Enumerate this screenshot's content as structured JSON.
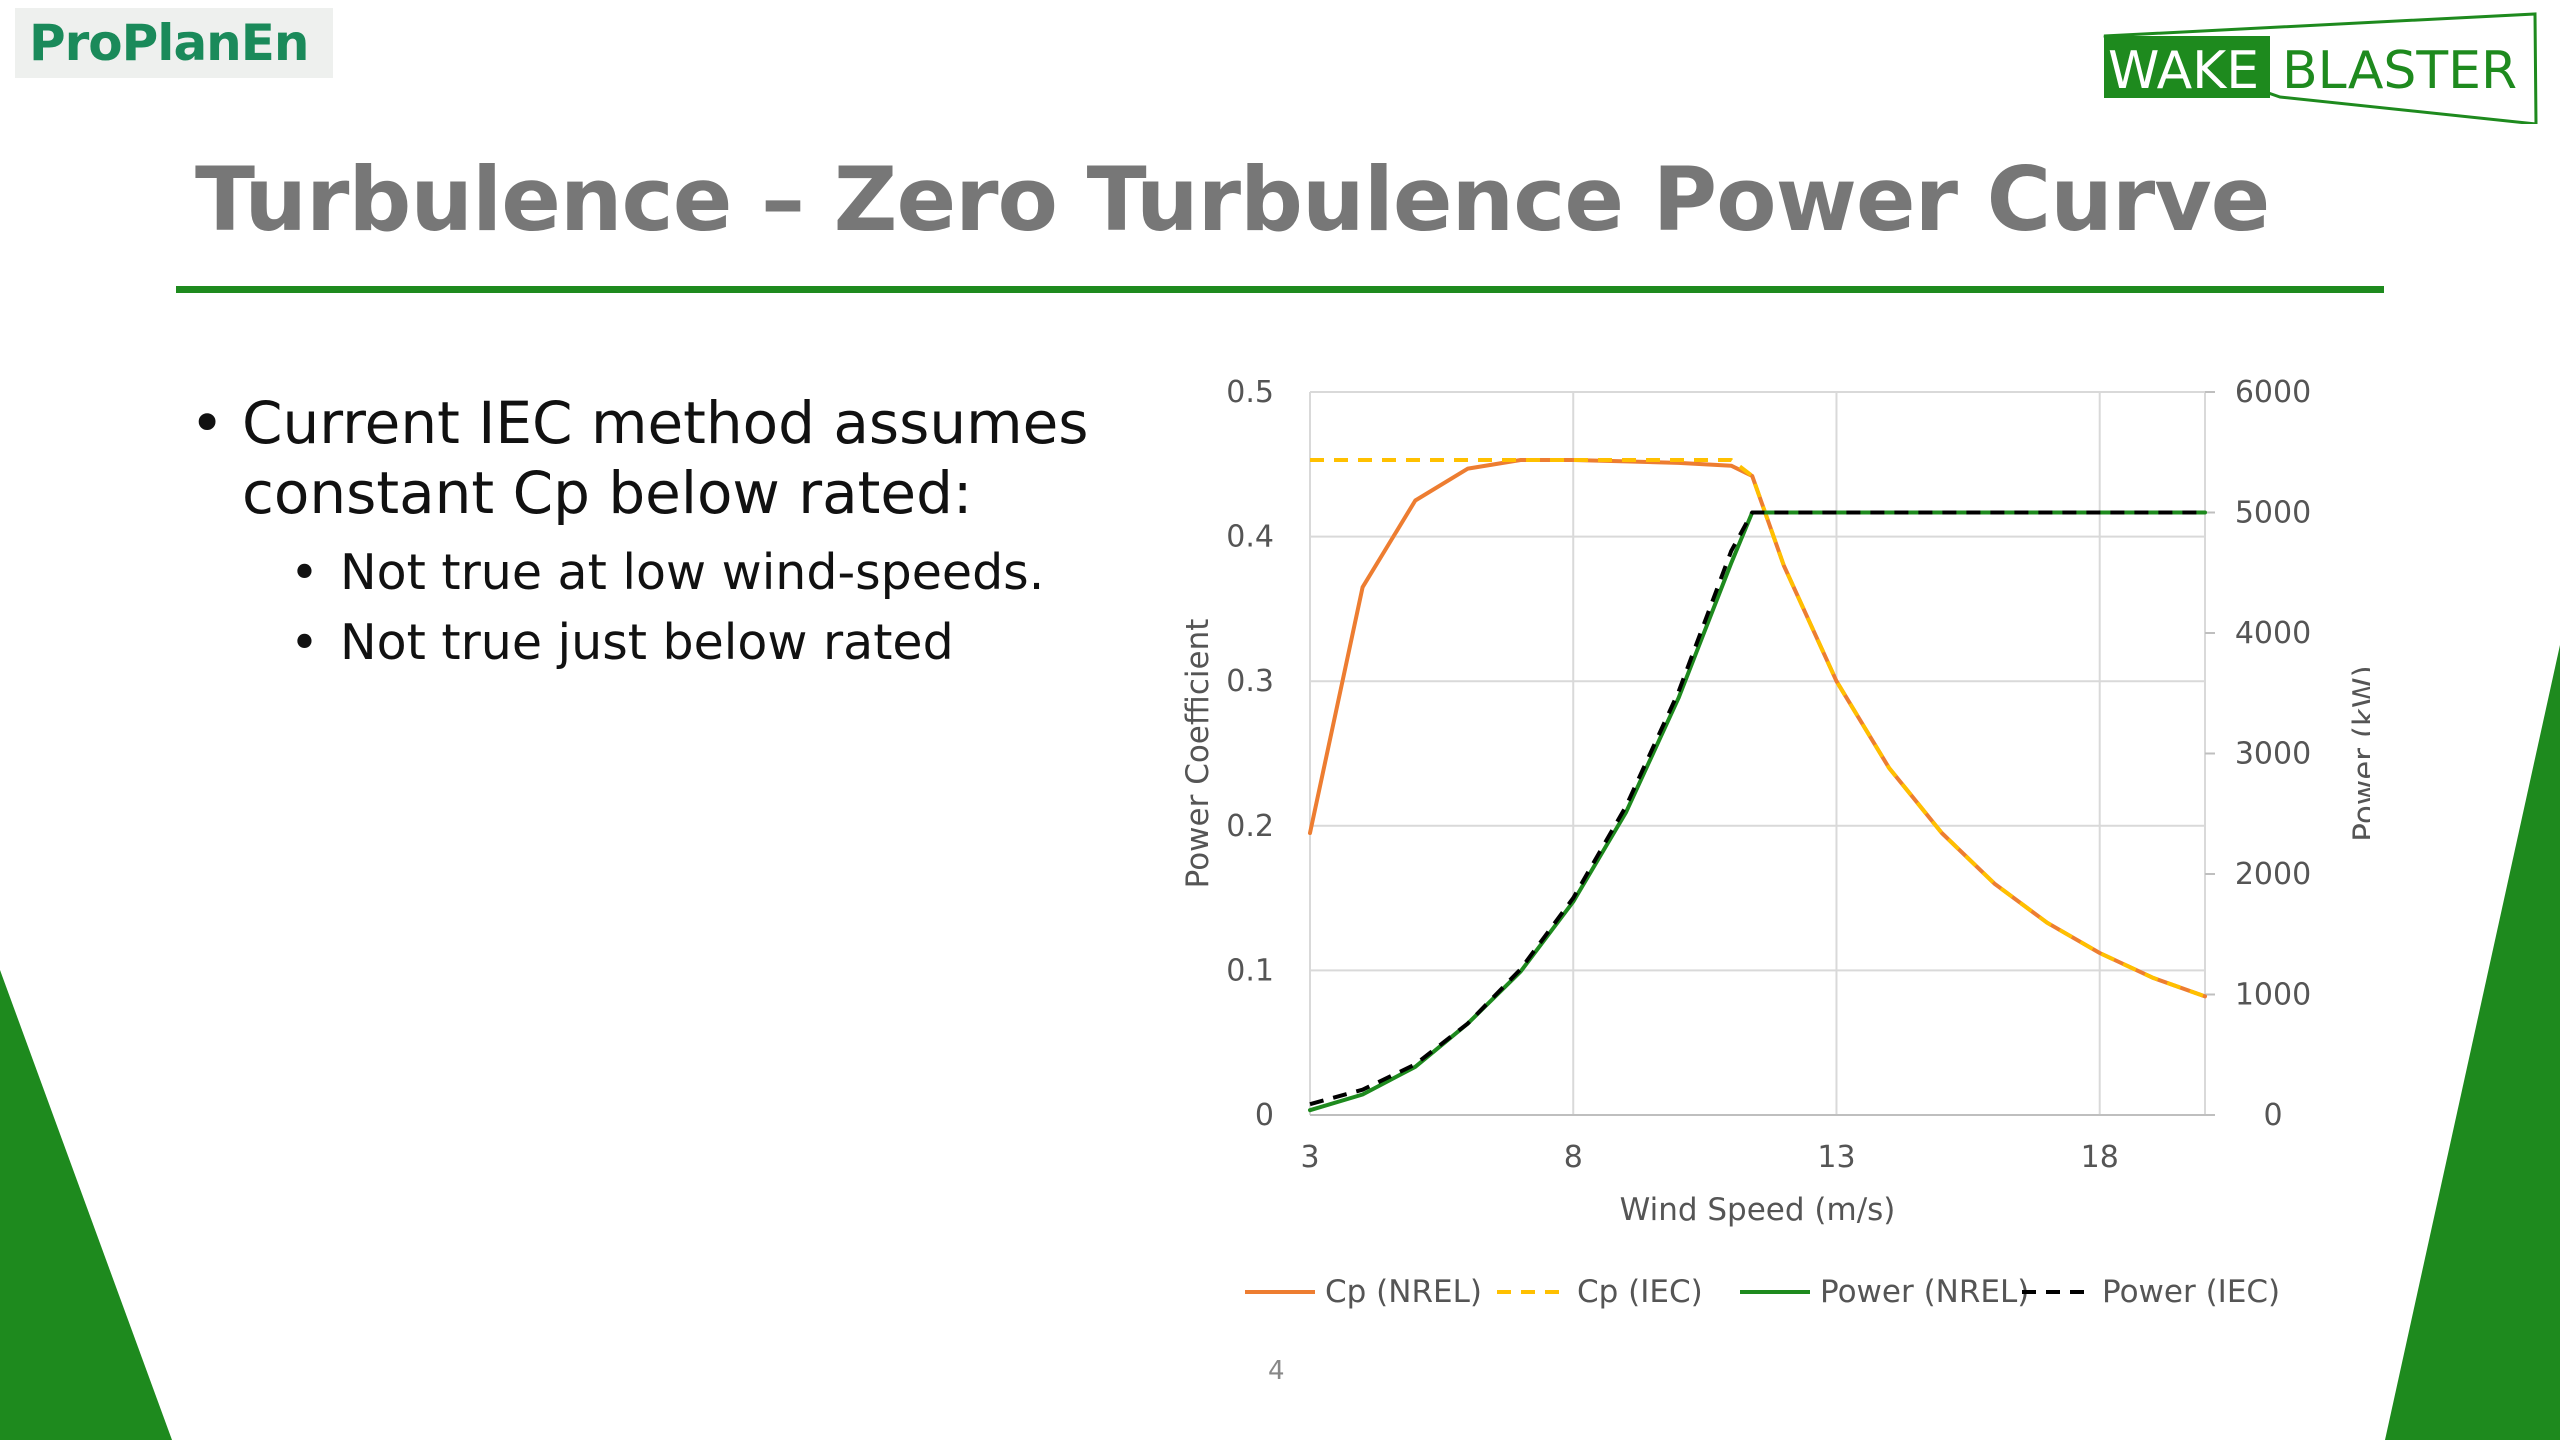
{
  "header": {
    "org_logo_text": "ProPlanEn",
    "brand_logo_parts": [
      "WAKE",
      "BLASTER"
    ],
    "title": "Turbulence – Zero Turbulence Power Curve"
  },
  "content": {
    "bullets": [
      {
        "text": "Current IEC method assumes constant Cp below rated:",
        "level": 1
      },
      {
        "text": "Not true at low wind-speeds.",
        "level": 2
      },
      {
        "text": "Not true just below rated",
        "level": 2
      }
    ]
  },
  "footer": {
    "page_number": "4"
  },
  "colors": {
    "accent_green": "#1e8a1e",
    "cp_nrel": "#ed7d31",
    "cp_iec": "#ffc000",
    "power_nrel": "#1e8a1e",
    "power_iec": "#000000",
    "title_gray": "#777777"
  },
  "chart_data": {
    "type": "line",
    "xlabel": "Wind Speed (m/s)",
    "ylabel": "Power Coefficient",
    "y2label": "Power (kW)",
    "xlim": [
      3,
      20
    ],
    "ylim": [
      0,
      0.5
    ],
    "y2lim": [
      0,
      6000
    ],
    "xticks": [
      "3",
      "8",
      "13",
      "18"
    ],
    "yticks": [
      "0",
      "0.1",
      "0.2",
      "0.3",
      "0.4",
      "0.5"
    ],
    "y2ticks": [
      "0",
      "1000",
      "2000",
      "3000",
      "4000",
      "5000",
      "6000"
    ],
    "grid": true,
    "legend_position": "bottom",
    "series": [
      {
        "name": "Cp (NREL)",
        "axis": "left",
        "style": "solid",
        "color": "#ed7d31",
        "x": [
          3,
          4,
          5,
          6,
          7,
          8,
          9,
          10,
          11,
          11.4,
          12,
          13,
          14,
          15,
          16,
          17,
          18,
          19,
          20
        ],
        "y": [
          0.195,
          0.365,
          0.425,
          0.447,
          0.453,
          0.453,
          0.452,
          0.451,
          0.449,
          0.442,
          0.38,
          0.3,
          0.24,
          0.195,
          0.16,
          0.133,
          0.112,
          0.095,
          0.082
        ]
      },
      {
        "name": "Cp (IEC)",
        "axis": "left",
        "style": "dashed",
        "color": "#ffc000",
        "x": [
          3,
          4,
          5,
          6,
          7,
          8,
          9,
          10,
          11,
          11.4,
          12,
          13,
          14,
          15,
          16,
          17,
          18,
          19,
          20
        ],
        "y": [
          0.453,
          0.453,
          0.453,
          0.453,
          0.453,
          0.453,
          0.453,
          0.453,
          0.453,
          0.442,
          0.38,
          0.3,
          0.24,
          0.195,
          0.16,
          0.133,
          0.112,
          0.095,
          0.082
        ]
      },
      {
        "name": "Power (NREL)",
        "axis": "right",
        "style": "solid",
        "color": "#1e8a1e",
        "x": [
          3,
          4,
          5,
          6,
          7,
          8,
          9,
          10,
          11,
          11.4,
          12,
          13,
          14,
          15,
          16,
          17,
          18,
          19,
          20
        ],
        "y": [
          40,
          170,
          400,
          760,
          1190,
          1770,
          2510,
          3460,
          4580,
          5000,
          5000,
          5000,
          5000,
          5000,
          5000,
          5000,
          5000,
          5000,
          5000
        ]
      },
      {
        "name": "Power (IEC)",
        "axis": "right",
        "style": "dashed",
        "color": "#000000",
        "x": [
          3,
          4,
          5,
          6,
          7,
          8,
          9,
          10,
          11,
          11.4,
          12,
          13,
          14,
          15,
          16,
          17,
          18,
          19,
          20
        ],
        "y": [
          90,
          210,
          420,
          760,
          1210,
          1800,
          2560,
          3510,
          4680,
          5000,
          5000,
          5000,
          5000,
          5000,
          5000,
          5000,
          5000,
          5000,
          5000
        ]
      }
    ]
  }
}
